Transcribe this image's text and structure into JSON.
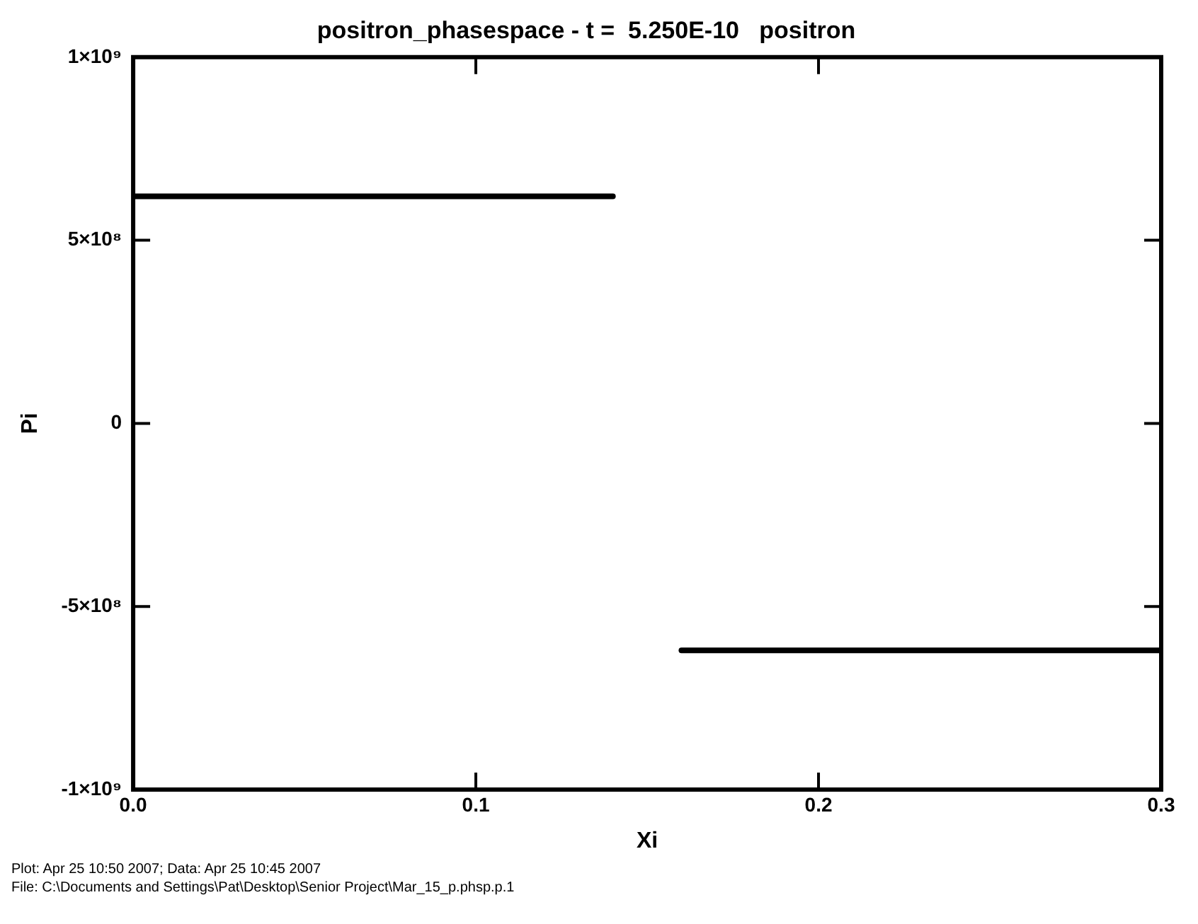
{
  "chart_data": {
    "type": "line",
    "title": "positron_phasespace - t =  5.250E-10   positron",
    "xlabel": "Xi",
    "ylabel": "Pi",
    "series": [
      {
        "color": "#000000",
        "x": [
          0,
          0.14
        ],
        "values": [
          620000000,
          620000000
        ]
      },
      {
        "color": "#000000",
        "x": [
          0.16,
          0.3
        ],
        "values": [
          -620000000,
          -620000000
        ]
      }
    ],
    "xlim": [
      0,
      0.3
    ],
    "xticks": [
      {
        "value": 0,
        "label": "0.0"
      },
      {
        "value": 0.1,
        "label": "0.1"
      },
      {
        "value": 0.2,
        "label": "0.2"
      },
      {
        "value": 0.3,
        "label": "0.3"
      }
    ],
    "ylim": [
      -1000000000,
      1000000000
    ],
    "yticks": [
      {
        "value": -1000000000,
        "label": "-1×10⁹"
      },
      {
        "value": -500000000,
        "label": "-5×10⁸"
      },
      0,
      {
        "value": 500000000,
        "label": "5×10⁸"
      },
      {
        "value": 1000000000,
        "label": "1×10⁹"
      }
    ],
    "grid": false,
    "legend": false,
    "marker": "none",
    "line_style": "solid",
    "annotations": [
      "Plot: Apr 25 10:50 2007; Data: Apr 25 10:45 2007",
      "File: C:\\Documents and Settings\\Pat\\Desktop\\Senior Project\\Mar_15_p.phsp.p.1"
    ]
  }
}
